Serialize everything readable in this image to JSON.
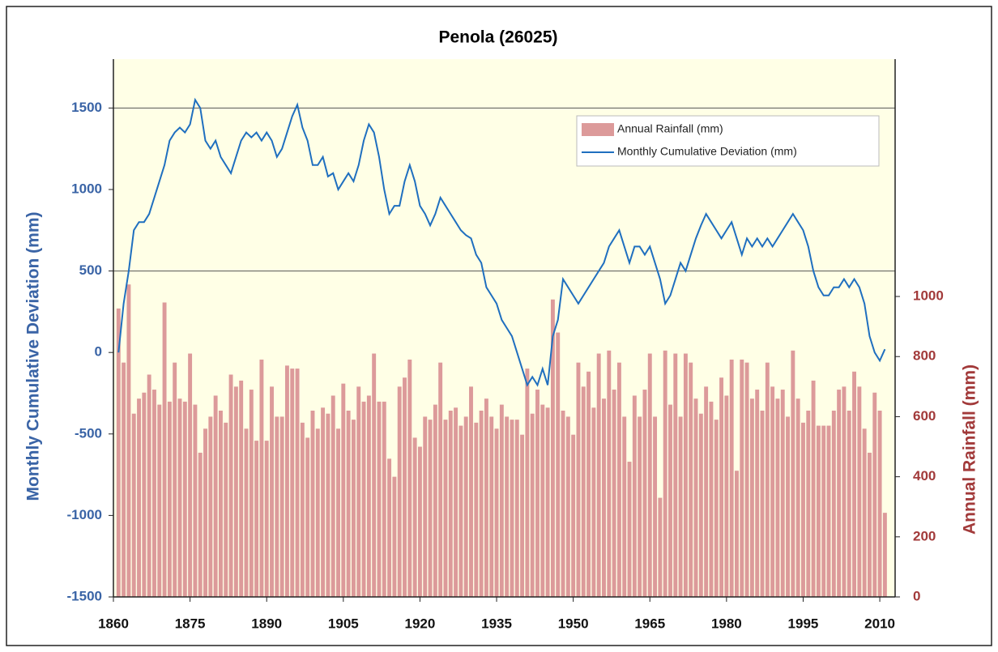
{
  "chart_data": {
    "type": "bar_line",
    "title": "Penola  (26025)",
    "y_label": "Monthly Cumulative Deviation (mm)",
    "y2_label": "Annual Rainfall (mm)",
    "x": [
      1861,
      1862,
      1863,
      1864,
      1865,
      1866,
      1867,
      1868,
      1869,
      1870,
      1871,
      1872,
      1873,
      1874,
      1875,
      1876,
      1877,
      1878,
      1879,
      1880,
      1881,
      1882,
      1883,
      1884,
      1885,
      1886,
      1887,
      1888,
      1889,
      1890,
      1891,
      1892,
      1893,
      1894,
      1895,
      1896,
      1897,
      1898,
      1899,
      1900,
      1901,
      1902,
      1903,
      1904,
      1905,
      1906,
      1907,
      1908,
      1909,
      1910,
      1911,
      1912,
      1913,
      1914,
      1915,
      1916,
      1917,
      1918,
      1919,
      1920,
      1921,
      1922,
      1923,
      1924,
      1925,
      1926,
      1927,
      1928,
      1929,
      1930,
      1931,
      1932,
      1933,
      1934,
      1935,
      1936,
      1937,
      1938,
      1939,
      1940,
      1941,
      1942,
      1943,
      1944,
      1945,
      1946,
      1947,
      1948,
      1949,
      1950,
      1951,
      1952,
      1953,
      1954,
      1955,
      1956,
      1957,
      1958,
      1959,
      1960,
      1961,
      1962,
      1963,
      1964,
      1965,
      1966,
      1967,
      1968,
      1969,
      1970,
      1971,
      1972,
      1973,
      1974,
      1975,
      1976,
      1977,
      1978,
      1979,
      1980,
      1981,
      1982,
      1983,
      1984,
      1985,
      1986,
      1987,
      1988,
      1989,
      1990,
      1991,
      1992,
      1993,
      1994,
      1995,
      1996,
      1997,
      1998,
      1999,
      2000,
      2001,
      2002,
      2003,
      2004,
      2005,
      2006,
      2007,
      2008,
      2009,
      2010,
      2011
    ],
    "series": [
      {
        "name": "Annual Rainfall (mm)",
        "kind": "bar",
        "axis": "y2",
        "color": "#dc9a9a",
        "values": [
          960,
          780,
          1040,
          610,
          660,
          680,
          740,
          690,
          640,
          980,
          650,
          780,
          660,
          650,
          810,
          640,
          480,
          560,
          600,
          670,
          620,
          580,
          740,
          700,
          720,
          560,
          690,
          520,
          790,
          520,
          700,
          600,
          600,
          770,
          760,
          760,
          580,
          530,
          620,
          560,
          630,
          610,
          670,
          560,
          710,
          620,
          590,
          700,
          650,
          670,
          810,
          650,
          650,
          460,
          400,
          700,
          730,
          790,
          530,
          500,
          600,
          590,
          640,
          780,
          590,
          620,
          630,
          570,
          600,
          700,
          580,
          620,
          660,
          600,
          560,
          640,
          600,
          590,
          590,
          540,
          760,
          610,
          690,
          640,
          630,
          990,
          880,
          620,
          600,
          540,
          780,
          700,
          750,
          630,
          810,
          660,
          820,
          690,
          780,
          600,
          450,
          670,
          600,
          690,
          810,
          600,
          330,
          820,
          640,
          810,
          600,
          810,
          780,
          660,
          610,
          700,
          650,
          590,
          730,
          670,
          790,
          420,
          790,
          780,
          660,
          690,
          620,
          780,
          700,
          660,
          690,
          600,
          820,
          660,
          580,
          620,
          720,
          570,
          570,
          570,
          620,
          690,
          700,
          620,
          750,
          700,
          560,
          480,
          680,
          620,
          280
        ]
      },
      {
        "name": "Monthly Cumulative Deviation (mm)",
        "kind": "line",
        "color": "#1f6fbf",
        "values": [
          0,
          300,
          500,
          750,
          800,
          800,
          850,
          950,
          1050,
          1150,
          1300,
          1350,
          1380,
          1350,
          1400,
          1550,
          1500,
          1300,
          1250,
          1300,
          1200,
          1150,
          1100,
          1200,
          1300,
          1350,
          1320,
          1350,
          1300,
          1350,
          1300,
          1200,
          1250,
          1350,
          1450,
          1520,
          1380,
          1300,
          1150,
          1150,
          1200,
          1080,
          1100,
          1000,
          1050,
          1100,
          1050,
          1150,
          1300,
          1400,
          1350,
          1200,
          1000,
          850,
          900,
          900,
          1050,
          1150,
          1050,
          900,
          850,
          780,
          850,
          950,
          900,
          850,
          800,
          750,
          720,
          700,
          600,
          550,
          400,
          350,
          300,
          200,
          150,
          100,
          0,
          -100,
          -200,
          -150,
          -200,
          -100,
          -200,
          100,
          200,
          450,
          400,
          350,
          300,
          350,
          400,
          450,
          500,
          550,
          650,
          700,
          750,
          650,
          550,
          650,
          650,
          600,
          650,
          550,
          450,
          300,
          350,
          450,
          550,
          500,
          600,
          700,
          780,
          850,
          800,
          750,
          700,
          750,
          800,
          700,
          600,
          700,
          650,
          700,
          650,
          700,
          650,
          700,
          750,
          800,
          850,
          800,
          750,
          650,
          500,
          400,
          350,
          350,
          400,
          400,
          450,
          400,
          450,
          400,
          300,
          100,
          0,
          -50,
          20
        ]
      }
    ],
    "xlim": [
      1860,
      2013
    ],
    "xticks": [
      1860,
      1875,
      1890,
      1905,
      1920,
      1935,
      1950,
      1965,
      1980,
      1995,
      2010
    ],
    "ylim": [
      -1500,
      1800
    ],
    "yticks": [
      -1500,
      -1000,
      -500,
      0,
      500,
      1000,
      1500
    ],
    "y2lim": [
      0,
      1790
    ],
    "y2ticks": [
      0,
      200,
      400,
      600,
      800,
      1000
    ],
    "grid_lines": [
      500,
      1500
    ],
    "legend": "upper right"
  }
}
